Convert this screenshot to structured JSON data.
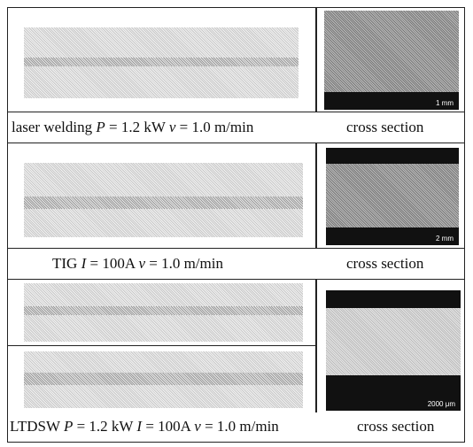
{
  "panels": [
    {
      "caption": [
        "laser welding ",
        "P",
        " = 1.2 kW ",
        "v",
        " = 1.0 m/min"
      ],
      "cross_section_label": "cross section",
      "scale_bar": "1 mm"
    },
    {
      "caption": [
        "TIG ",
        "I",
        " = 100A ",
        "v",
        " = 1.0 m/min"
      ],
      "cross_section_label": "cross section",
      "scale_bar": "2 mm"
    },
    {
      "caption": [
        "LTDSW ",
        "P",
        " = 1.2 kW ",
        "I",
        " = 100A ",
        "v",
        " = 1.0 m/min"
      ],
      "cross_section_label": "cross section",
      "scale_bar": "2000 μm"
    }
  ]
}
